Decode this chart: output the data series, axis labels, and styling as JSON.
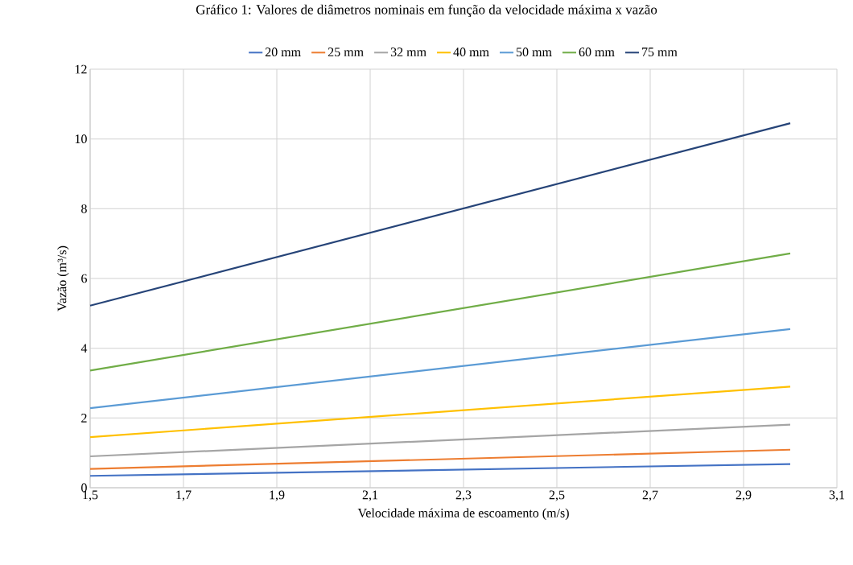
{
  "chart_data": {
    "type": "line",
    "title": "Gráfico 1: Valores de diâmetros nominais em função da velocidade máxima x vazão",
    "xlabel": "Velocidade máxima de escoamento (m/s)",
    "ylabel": "Vazão (m³/s)",
    "x": [
      1.5,
      3.0
    ],
    "series": [
      {
        "name": "20 mm",
        "color": "#4472c4",
        "values": [
          0.34,
          0.68
        ]
      },
      {
        "name": "25 mm",
        "color": "#ed7d31",
        "values": [
          0.54,
          1.09
        ]
      },
      {
        "name": "32 mm",
        "color": "#a5a5a5",
        "values": [
          0.9,
          1.81
        ]
      },
      {
        "name": "40 mm",
        "color": "#ffc000",
        "values": [
          1.45,
          2.9
        ]
      },
      {
        "name": "50 mm",
        "color": "#5b9bd5",
        "values": [
          2.28,
          4.55
        ]
      },
      {
        "name": "60 mm",
        "color": "#70ad47",
        "values": [
          3.36,
          6.72
        ]
      },
      {
        "name": "75 mm",
        "color": "#264478",
        "values": [
          5.22,
          10.45
        ]
      }
    ],
    "xlim": [
      1.5,
      3.1
    ],
    "ylim": [
      0,
      12
    ],
    "xticks": [
      {
        "value": 1.5,
        "label": "1,5"
      },
      {
        "value": 1.7,
        "label": "1,7"
      },
      {
        "value": 1.9,
        "label": "1,9"
      },
      {
        "value": 2.1,
        "label": "2,1"
      },
      {
        "value": 2.3,
        "label": "2,3"
      },
      {
        "value": 2.5,
        "label": "2,5"
      },
      {
        "value": 2.7,
        "label": "2,7"
      },
      {
        "value": 2.9,
        "label": "2,9"
      },
      {
        "value": 3.1,
        "label": "3,1"
      }
    ],
    "yticks": [
      0,
      2,
      4,
      6,
      8,
      10,
      12
    ],
    "grid": true,
    "legend": "top",
    "marker": "none",
    "line_style": "solid"
  }
}
